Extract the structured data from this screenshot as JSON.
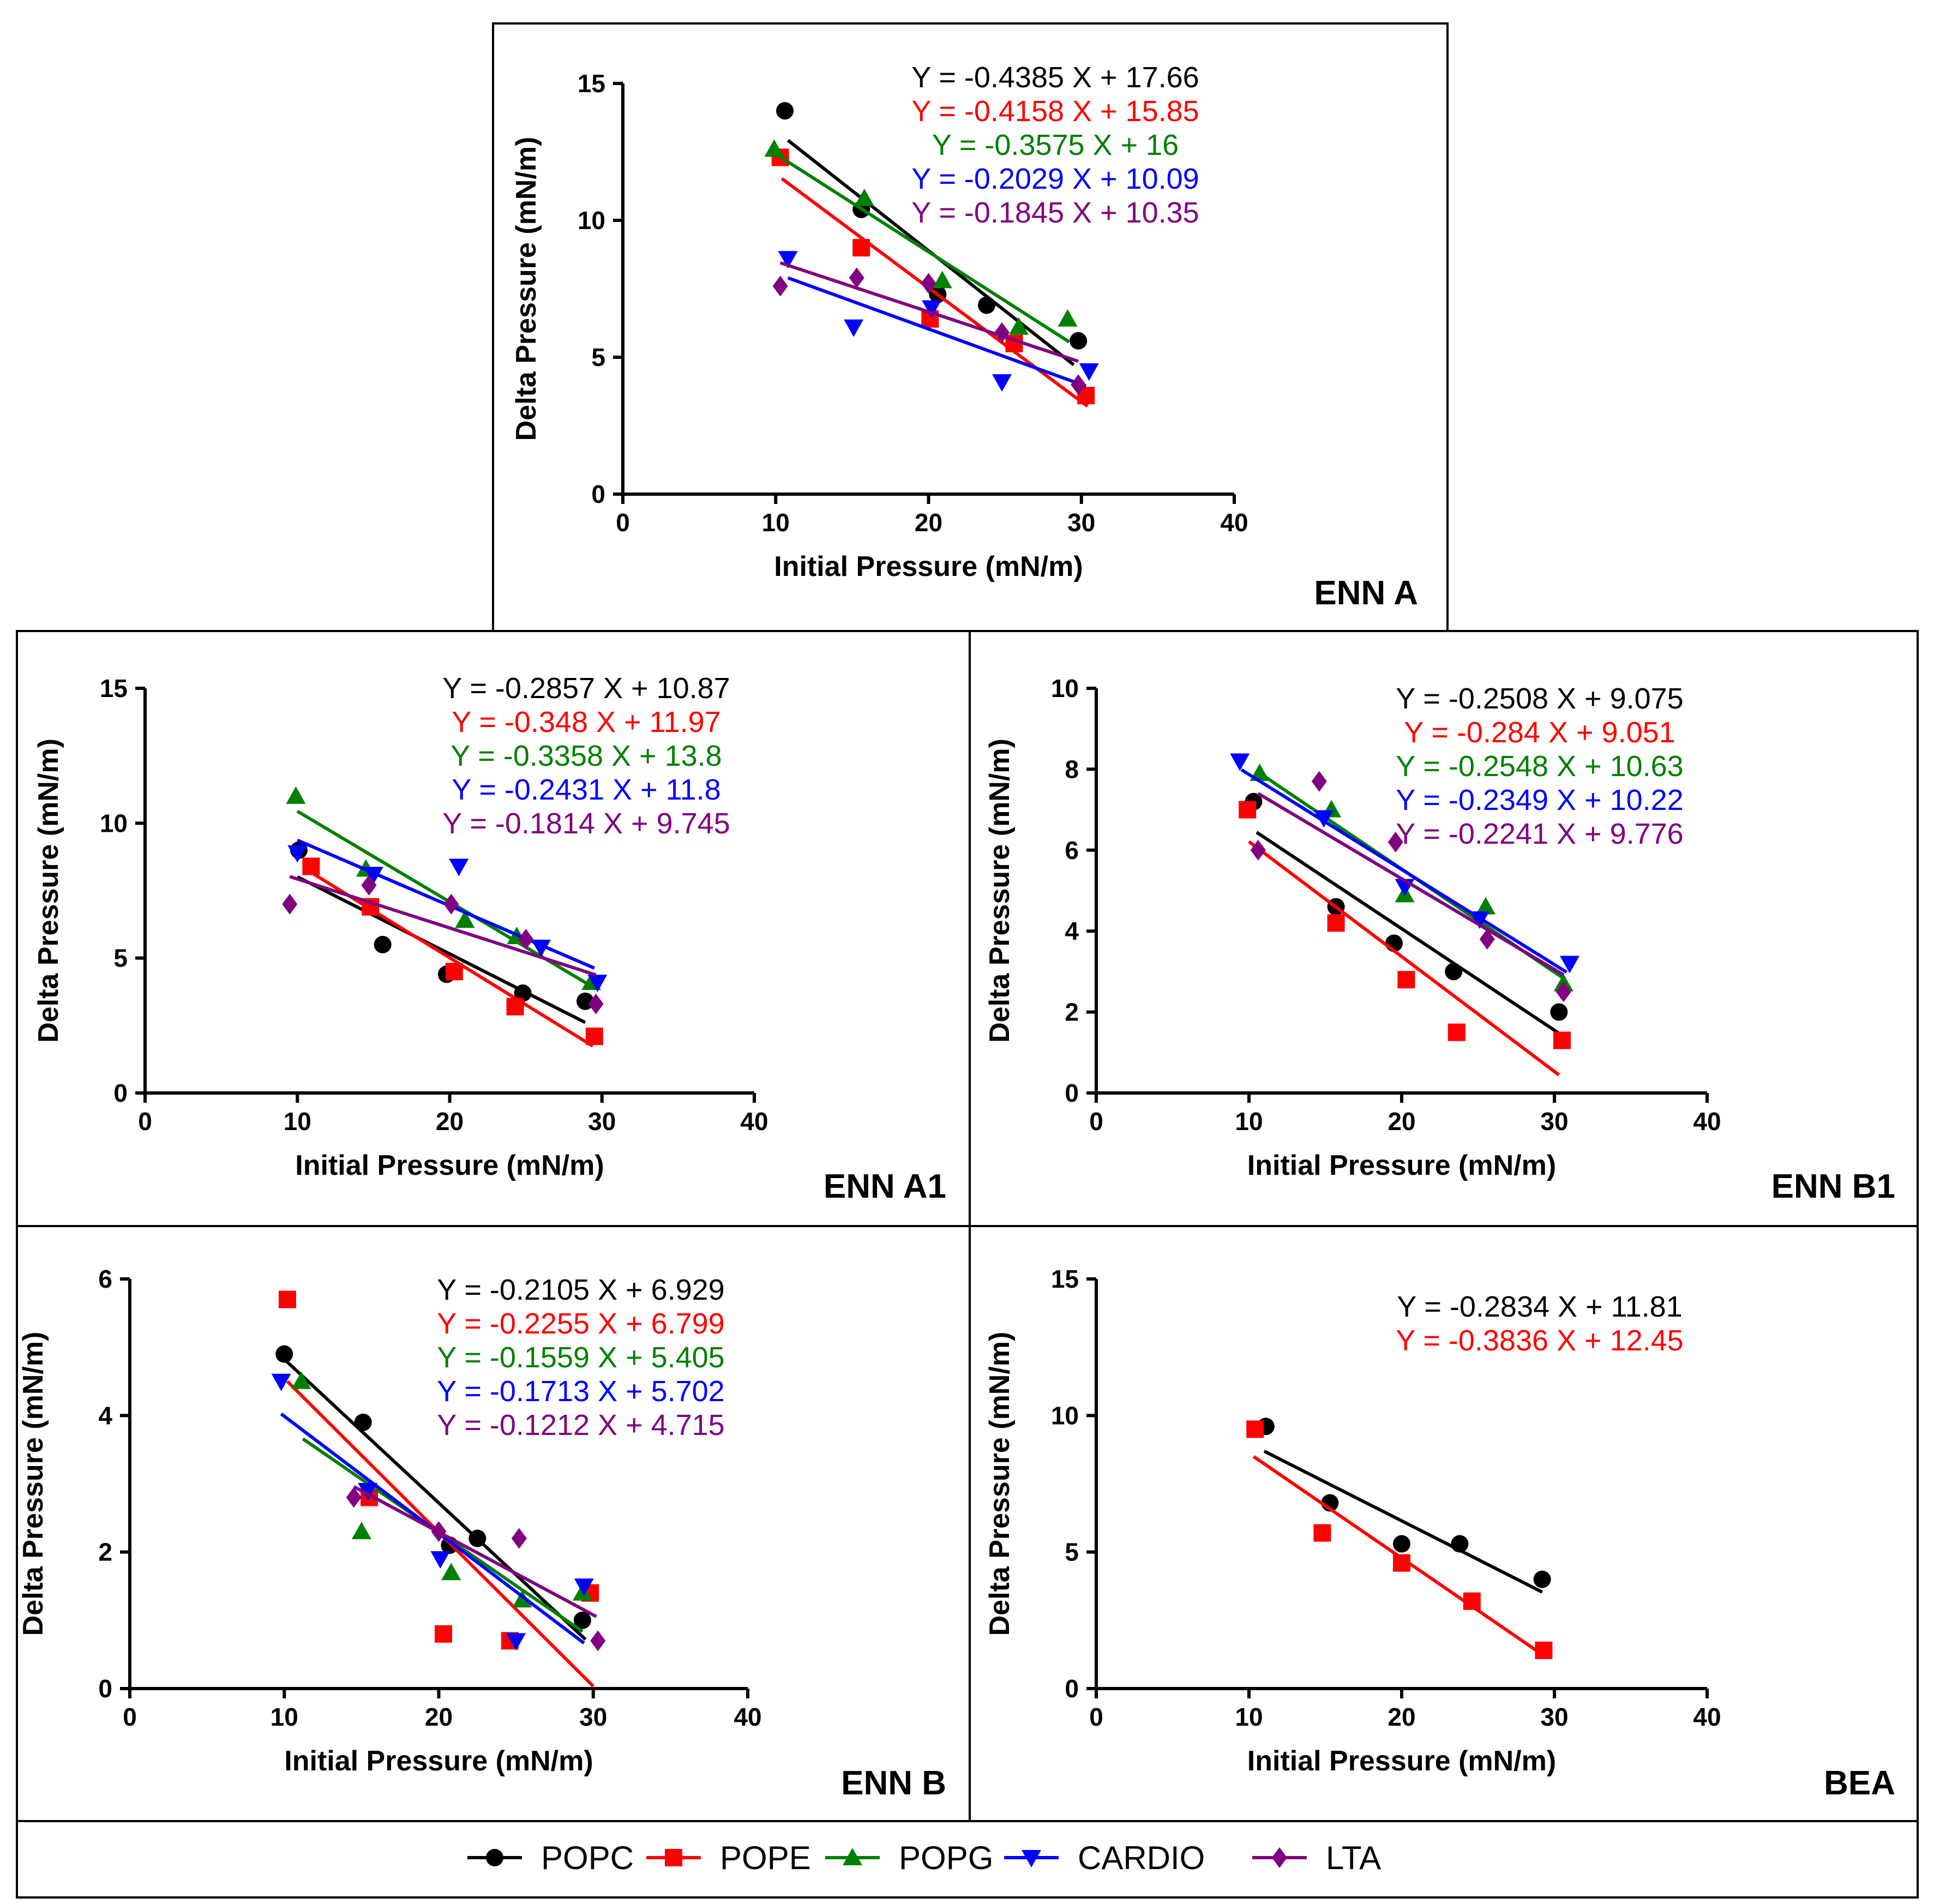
{
  "series_styles": [
    {
      "name": "POPC",
      "color": "#000000",
      "marker": "circle"
    },
    {
      "name": "POPE",
      "color": "#ff0000",
      "marker": "square"
    },
    {
      "name": "POPG",
      "color": "#008000",
      "marker": "triangle-up"
    },
    {
      "name": "CARDIO",
      "color": "#0000ff",
      "marker": "triangle-down"
    },
    {
      "name": "LTA",
      "color": "#800080",
      "marker": "diamond"
    }
  ],
  "legend": {
    "items": [
      "POPC",
      "POPE",
      "POPG",
      "CARDIO",
      "LTA"
    ]
  },
  "chart_data": [
    {
      "type": "scatter",
      "title": "ENN A",
      "xlabel": "Initial Pressure (mN/m)",
      "ylabel": "Delta Pressure (mN/m)",
      "xlim": [
        0,
        40
      ],
      "ylim": [
        0,
        15
      ],
      "xticks": [
        0,
        10,
        20,
        30,
        40
      ],
      "yticks": [
        0,
        5,
        10,
        15
      ],
      "series": [
        {
          "name": "POPC",
          "equation": "Y = -0.4385 X + 17.66",
          "slope": -0.4385,
          "intercept": 17.66,
          "fit_range": [
            10.8,
            29.5
          ],
          "points": [
            [
              10.6,
              14.0
            ],
            [
              15.6,
              10.4
            ],
            [
              20.6,
              7.3
            ],
            [
              23.8,
              6.9
            ],
            [
              29.8,
              5.6
            ]
          ]
        },
        {
          "name": "POPE",
          "equation": "Y = -0.4158 X + 15.85",
          "slope": -0.4158,
          "intercept": 15.85,
          "fit_range": [
            10.4,
            30.4
          ],
          "points": [
            [
              10.3,
              12.3
            ],
            [
              15.6,
              9.0
            ],
            [
              20.1,
              6.4
            ],
            [
              25.6,
              5.5
            ],
            [
              30.3,
              3.6
            ]
          ]
        },
        {
          "name": "POPG",
          "equation": "Y = -0.3575 X + 16",
          "slope": -0.3575,
          "intercept": 16.0,
          "fit_range": [
            10.0,
            29.2
          ],
          "points": [
            [
              9.9,
              12.6
            ],
            [
              15.8,
              10.8
            ],
            [
              20.9,
              7.8
            ],
            [
              25.9,
              6.1
            ],
            [
              29.1,
              6.4
            ]
          ]
        },
        {
          "name": "CARDIO",
          "equation": "Y = -0.2029 X + 10.09",
          "slope": -0.2029,
          "intercept": 10.09,
          "fit_range": [
            10.8,
            30.3
          ],
          "points": [
            [
              10.8,
              8.6
            ],
            [
              15.1,
              6.1
            ],
            [
              20.2,
              6.8
            ],
            [
              24.8,
              4.1
            ],
            [
              30.5,
              4.5
            ]
          ]
        },
        {
          "name": "LTA",
          "equation": "Y = -0.1845 X + 10.35",
          "slope": -0.1845,
          "intercept": 10.35,
          "fit_range": [
            10.3,
            29.8
          ],
          "points": [
            [
              10.3,
              7.6
            ],
            [
              15.3,
              7.9
            ],
            [
              20.0,
              7.7
            ],
            [
              24.8,
              5.9
            ],
            [
              29.8,
              4.0
            ]
          ]
        }
      ]
    },
    {
      "type": "scatter",
      "title": "ENN A1",
      "xlabel": "Initial Pressure (mN/m)",
      "ylabel": "Delta Pressure (mN/m)",
      "xlim": [
        0,
        40
      ],
      "ylim": [
        0,
        15
      ],
      "xticks": [
        0,
        10,
        20,
        30,
        40
      ],
      "yticks": [
        0,
        5,
        10,
        15
      ],
      "series": [
        {
          "name": "POPC",
          "equation": "Y = -0.2857 X + 10.87",
          "slope": -0.2857,
          "intercept": 10.87,
          "fit_range": [
            10.0,
            28.9
          ],
          "points": [
            [
              10.1,
              9.0
            ],
            [
              15.6,
              5.5
            ],
            [
              19.8,
              4.4
            ],
            [
              24.8,
              3.7
            ],
            [
              28.9,
              3.4
            ]
          ]
        },
        {
          "name": "POPE",
          "equation": "Y = -0.348 X + 11.97",
          "slope": -0.348,
          "intercept": 11.97,
          "fit_range": [
            10.9,
            29.4
          ],
          "points": [
            [
              10.9,
              8.4
            ],
            [
              14.8,
              6.9
            ],
            [
              20.3,
              4.5
            ],
            [
              24.3,
              3.2
            ],
            [
              29.5,
              2.1
            ]
          ]
        },
        {
          "name": "POPG",
          "equation": "Y = -0.3358 X + 13.8",
          "slope": -0.3358,
          "intercept": 13.8,
          "fit_range": [
            10.0,
            29.4
          ],
          "points": [
            [
              9.9,
              11.0
            ],
            [
              14.5,
              8.3
            ],
            [
              21.0,
              6.4
            ],
            [
              24.4,
              5.8
            ],
            [
              29.3,
              4.1
            ]
          ]
        },
        {
          "name": "CARDIO",
          "equation": "Y = -0.2431 X + 11.8",
          "slope": -0.2431,
          "intercept": 11.8,
          "fit_range": [
            10.0,
            29.5
          ],
          "points": [
            [
              10.0,
              8.9
            ],
            [
              15.0,
              8.1
            ],
            [
              20.6,
              8.4
            ],
            [
              26.0,
              5.4
            ],
            [
              29.7,
              4.1
            ]
          ]
        },
        {
          "name": "LTA",
          "equation": "Y = -0.1814 X + 9.745",
          "slope": -0.1814,
          "intercept": 9.745,
          "fit_range": [
            9.5,
            29.6
          ],
          "points": [
            [
              9.5,
              7.0
            ],
            [
              14.7,
              7.7
            ],
            [
              20.1,
              7.0
            ],
            [
              25.0,
              5.7
            ],
            [
              29.6,
              3.3
            ]
          ]
        }
      ]
    },
    {
      "type": "scatter",
      "title": "ENN B1",
      "xlabel": "Initial Pressure (mN/m)",
      "ylabel": "Delta Pressure (mN/m)",
      "xlim": [
        0,
        40
      ],
      "ylim": [
        0,
        10
      ],
      "xticks": [
        0,
        10,
        20,
        30,
        40
      ],
      "yticks": [
        0,
        2,
        4,
        6,
        8,
        10
      ],
      "series": [
        {
          "name": "POPC",
          "equation": "Y = -0.2508 X + 9.075",
          "slope": -0.2508,
          "intercept": 9.075,
          "fit_range": [
            10.5,
            30.3
          ],
          "points": [
            [
              10.3,
              7.2
            ],
            [
              15.7,
              4.6
            ],
            [
              19.5,
              3.7
            ],
            [
              23.4,
              3.0
            ],
            [
              30.3,
              2.0
            ]
          ]
        },
        {
          "name": "POPE",
          "equation": "Y = -0.284 X + 9.051",
          "slope": -0.284,
          "intercept": 9.051,
          "fit_range": [
            10.0,
            30.3
          ],
          "points": [
            [
              9.9,
              7.0
            ],
            [
              15.7,
              4.2
            ],
            [
              20.3,
              2.8
            ],
            [
              23.6,
              1.5
            ],
            [
              30.5,
              1.3
            ]
          ]
        },
        {
          "name": "POPG",
          "equation": "Y = -0.2548 X + 10.63",
          "slope": -0.2548,
          "intercept": 10.63,
          "fit_range": [
            10.5,
            30.6
          ],
          "points": [
            [
              10.7,
              7.9
            ],
            [
              15.4,
              7.0
            ],
            [
              20.2,
              4.9
            ],
            [
              25.5,
              4.6
            ],
            [
              30.6,
              2.7
            ]
          ]
        },
        {
          "name": "CARDIO",
          "equation": "Y = -0.2349 X + 10.22",
          "slope": -0.2349,
          "intercept": 10.22,
          "fit_range": [
            9.5,
            30.8
          ],
          "points": [
            [
              9.4,
              8.2
            ],
            [
              14.9,
              6.8
            ],
            [
              20.2,
              5.1
            ],
            [
              25.1,
              4.3
            ],
            [
              31.0,
              3.2
            ]
          ]
        },
        {
          "name": "LTA",
          "equation": "Y = -0.2241 X + 9.776",
          "slope": -0.2241,
          "intercept": 9.776,
          "fit_range": [
            10.6,
            30.6
          ],
          "points": [
            [
              10.6,
              6.0
            ],
            [
              14.6,
              7.7
            ],
            [
              19.6,
              6.2
            ],
            [
              25.6,
              3.8
            ],
            [
              30.6,
              2.5
            ]
          ]
        }
      ]
    },
    {
      "type": "scatter",
      "title": "ENN B",
      "xlabel": "Initial Pressure (mN/m)",
      "ylabel": "Delta Pressure (mN/m)",
      "xlim": [
        0,
        40
      ],
      "ylim": [
        0,
        6
      ],
      "xticks": [
        0,
        10,
        20,
        30,
        40
      ],
      "yticks": [
        0,
        2,
        4,
        6
      ],
      "series": [
        {
          "name": "POPC",
          "equation": "Y = -0.2105 X + 6.929",
          "slope": -0.2105,
          "intercept": 6.929,
          "fit_range": [
            10.0,
            29.5
          ],
          "points": [
            [
              10.0,
              4.9
            ],
            [
              15.1,
              3.9
            ],
            [
              20.7,
              2.1
            ],
            [
              22.5,
              2.2
            ],
            [
              29.3,
              1.0
            ]
          ]
        },
        {
          "name": "POPE",
          "equation": "Y = -0.2255 X + 6.799",
          "slope": -0.2255,
          "intercept": 6.799,
          "fit_range": [
            10.2,
            30.0
          ],
          "points": [
            [
              10.2,
              5.7
            ],
            [
              15.5,
              2.8
            ],
            [
              20.3,
              0.8
            ],
            [
              24.6,
              0.7
            ],
            [
              29.8,
              1.4
            ]
          ]
        },
        {
          "name": "POPG",
          "equation": "Y = -0.1559 X + 5.405",
          "slope": -0.1559,
          "intercept": 5.405,
          "fit_range": [
            11.2,
            29.3
          ],
          "points": [
            [
              11.1,
              4.5
            ],
            [
              15.0,
              2.3
            ],
            [
              20.8,
              1.7
            ],
            [
              25.4,
              1.3
            ],
            [
              29.3,
              1.4
            ]
          ]
        },
        {
          "name": "CARDIO",
          "equation": "Y = -0.1713 X + 5.702",
          "slope": -0.1713,
          "intercept": 5.702,
          "fit_range": [
            9.8,
            29.4
          ],
          "points": [
            [
              9.8,
              4.5
            ],
            [
              15.4,
              2.9
            ],
            [
              20.1,
              1.9
            ],
            [
              25.0,
              0.7
            ],
            [
              29.4,
              1.5
            ]
          ]
        },
        {
          "name": "LTA",
          "equation": "Y = -0.1212 X + 4.715",
          "slope": -0.1212,
          "intercept": 4.715,
          "fit_range": [
            14.5,
            30.2
          ],
          "points": [
            [
              14.5,
              2.8
            ],
            [
              20.0,
              2.3
            ],
            [
              25.2,
              2.2
            ],
            [
              30.3,
              0.7
            ]
          ]
        }
      ]
    },
    {
      "type": "scatter",
      "title": "BEA",
      "xlabel": "Initial Pressure (mN/m)",
      "ylabel": "Delta Pressure (mN/m)",
      "xlim": [
        0,
        40
      ],
      "ylim": [
        0,
        15
      ],
      "xticks": [
        0,
        10,
        20,
        30,
        40
      ],
      "yticks": [
        0,
        5,
        10,
        15
      ],
      "series": [
        {
          "name": "POPC",
          "equation": "Y = -0.2834 X + 11.81",
          "slope": -0.2834,
          "intercept": 11.81,
          "fit_range": [
            11.0,
            29.2
          ],
          "points": [
            [
              11.1,
              9.6
            ],
            [
              15.3,
              6.8
            ],
            [
              20.0,
              5.3
            ],
            [
              23.8,
              5.3
            ],
            [
              29.2,
              4.0
            ]
          ]
        },
        {
          "name": "POPE",
          "equation": "Y = -0.3836 X + 12.45",
          "slope": -0.3836,
          "intercept": 12.45,
          "fit_range": [
            10.3,
            29.4
          ],
          "points": [
            [
              10.4,
              9.5
            ],
            [
              14.8,
              5.7
            ],
            [
              20.0,
              4.6
            ],
            [
              24.6,
              3.2
            ],
            [
              29.3,
              1.4
            ]
          ]
        }
      ]
    }
  ]
}
